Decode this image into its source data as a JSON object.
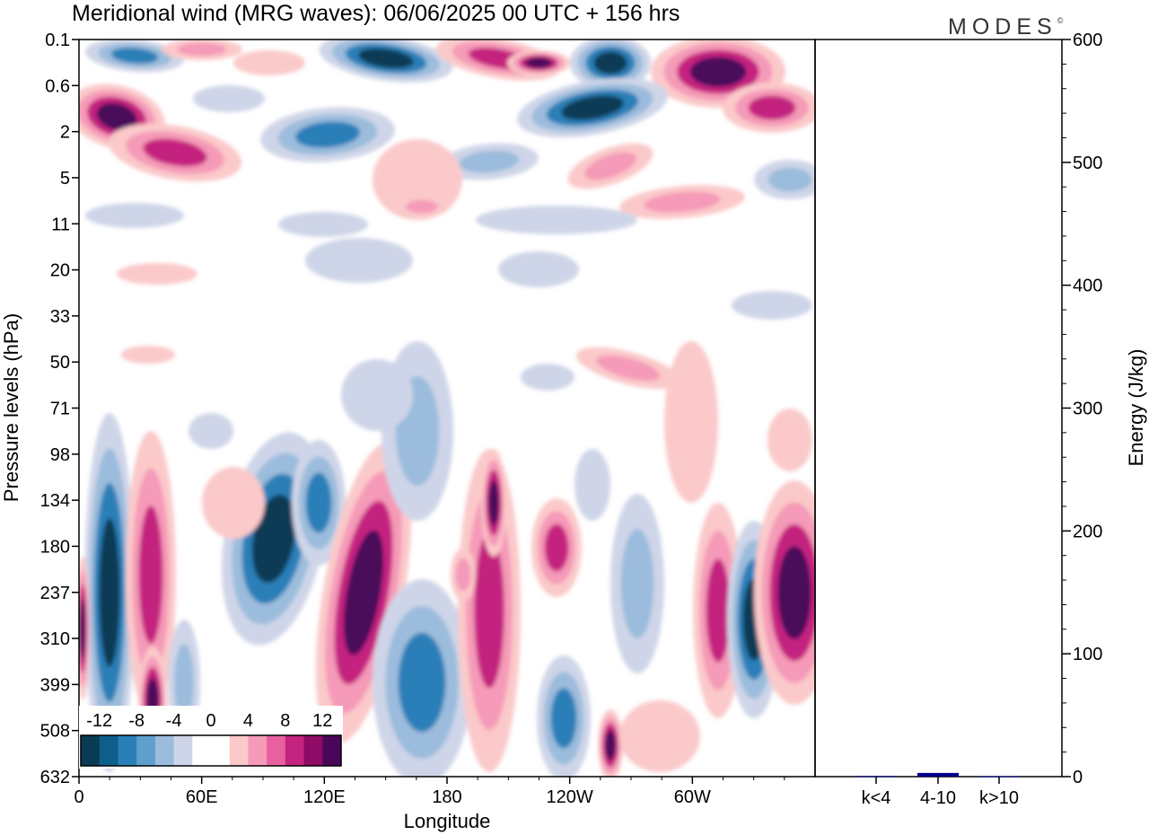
{
  "header": {
    "title": "Meridional wind (MRG waves):  06/06/2025  00 UTC  + 156 hrs",
    "logo_text": "MODES",
    "logo_mark": "©"
  },
  "chart_data": [
    {
      "type": "heatmap",
      "title": "Meridional wind (MRG waves):  06/06/2025  00 UTC  + 156 hrs",
      "xlabel": "Longitude",
      "ylabel": "Pressure levels (hPa)",
      "x_ticks": [
        "0",
        "60E",
        "120E",
        "180",
        "120W",
        "60W"
      ],
      "y_ticks": [
        "0.1",
        "0.6",
        "2",
        "5",
        "11",
        "20",
        "33",
        "50",
        "71",
        "98",
        "134",
        "180",
        "237",
        "310",
        "399",
        "508",
        "632"
      ],
      "colorbar": {
        "labels": [
          "-12",
          "-8",
          "-4",
          "0",
          "4",
          "8",
          "12"
        ],
        "colors": [
          "#0b3a55",
          "#0d5e8a",
          "#2b7fb8",
          "#5f9fcb",
          "#9bbcdc",
          "#cfd5e8",
          "#ffffff",
          "#ffffff",
          "#fbc9c9",
          "#f59ab8",
          "#e8609f",
          "#c4237f",
          "#8e0b66",
          "#4a075a"
        ]
      },
      "colors": {
        "blue_dark": "#0b3a55",
        "blue_mid": "#2b7fb8",
        "blue_light": "#9bbcdc",
        "lavender": "#cfd5e8",
        "pink_light": "#fbc9c9",
        "pink_mid": "#f59ab8",
        "magenta": "#c4237f",
        "purple": "#4a075a"
      }
    },
    {
      "type": "bar",
      "categories": [
        "k<4",
        "4-10",
        "k>10"
      ],
      "values": [
        0.5,
        3,
        0.3
      ],
      "ylabel": "Energy (J/kg)",
      "ylim": [
        0,
        600
      ],
      "y_ticks": [
        "0",
        "100",
        "200",
        "300",
        "400",
        "500",
        "600"
      ],
      "bar_color": "#00008b"
    }
  ]
}
